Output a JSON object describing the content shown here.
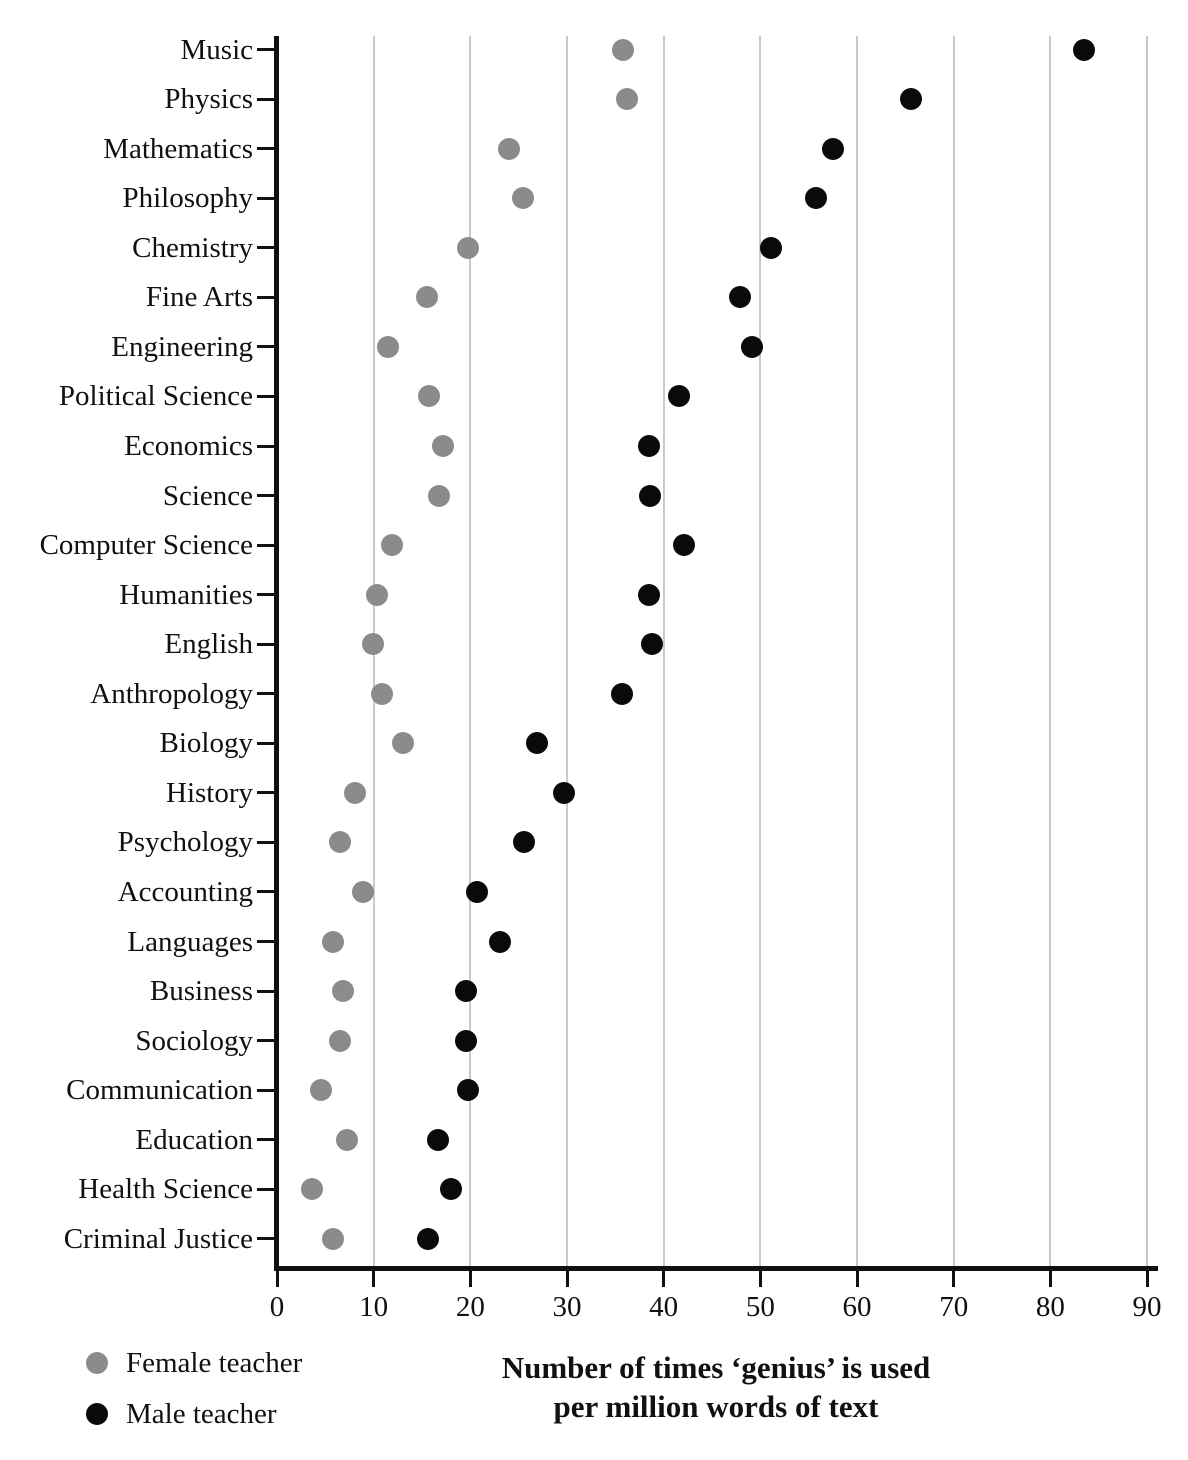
{
  "chart_data": {
    "type": "scatter",
    "variant": "horizontal-dot-plot",
    "title": "Number of times ‘genius’ is used per million words of text",
    "xlabel_lines": [
      "Number of times ‘genius’ is used",
      "per million words of text"
    ],
    "categories": [
      "Music",
      "Physics",
      "Mathematics",
      "Philosophy",
      "Chemistry",
      "Fine Arts",
      "Engineering",
      "Political Science",
      "Economics",
      "Science",
      "Computer Science",
      "Humanities",
      "English",
      "Anthropology",
      "Biology",
      "History",
      "Psychology",
      "Accounting",
      "Languages",
      "Business",
      "Sociology",
      "Communication",
      "Education",
      "Health Science",
      "Criminal Justice"
    ],
    "series": [
      {
        "name": "Female teacher",
        "color": "#8a8b8d",
        "values": [
          35.8,
          36.2,
          24.0,
          25.4,
          19.8,
          15.5,
          11.5,
          15.7,
          17.2,
          16.8,
          11.9,
          10.3,
          9.9,
          10.9,
          13.0,
          8.1,
          6.5,
          8.9,
          5.8,
          6.8,
          6.5,
          4.5,
          7.2,
          3.6,
          5.8
        ]
      },
      {
        "name": "Male teacher",
        "color": "#0a0a0a",
        "values": [
          83.5,
          65.6,
          57.5,
          55.8,
          51.1,
          47.9,
          49.1,
          41.6,
          38.5,
          38.6,
          42.1,
          38.5,
          38.8,
          35.7,
          26.9,
          29.7,
          25.5,
          20.7,
          23.1,
          19.6,
          19.6,
          19.8,
          16.7,
          18.0,
          15.6
        ]
      }
    ],
    "x_axis": {
      "min": 0,
      "max": 90,
      "tick_step": 10,
      "tick_labels": [
        "0",
        "10",
        "20",
        "30",
        "40",
        "50",
        "60",
        "70",
        "80",
        "90"
      ]
    },
    "grid": "vertical gridlines every 10 units",
    "legend_position": "bottom-left",
    "colors": {
      "gridline": "#c9c9c9",
      "axis": "#111111",
      "background": "#ffffff"
    }
  }
}
